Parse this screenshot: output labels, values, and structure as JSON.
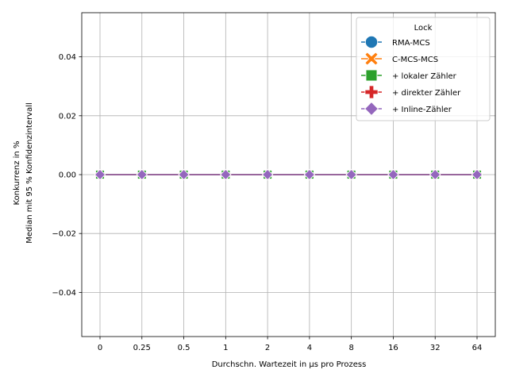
{
  "chart_data": {
    "type": "line",
    "x": [
      "0",
      "0.25",
      "0.5",
      "1",
      "2",
      "4",
      "8",
      "16",
      "32",
      "64"
    ],
    "xlabel": "Durchschn. Wartezeit in µs pro Prozess",
    "ylabel": [
      "Konkurrenz in %",
      "Median mit 95 % Konfidenzintervall"
    ],
    "ylim": [
      -0.055,
      0.055
    ],
    "yticks": [
      -0.04,
      -0.02,
      0.0,
      0.02,
      0.04
    ],
    "ytick_labels": [
      "−0.04",
      "−0.02",
      "0.00",
      "0.02",
      "0.04"
    ],
    "grid": true,
    "legend": {
      "title": "Lock",
      "placement": "top-right"
    },
    "series": [
      {
        "name": "RMA-MCS",
        "color": "#1f77b4",
        "marker": "circle",
        "values": [
          0,
          0,
          0,
          0,
          0,
          0,
          0,
          0,
          0,
          0
        ]
      },
      {
        "name": "C-MCS-MCS",
        "color": "#ff7f0e",
        "marker": "x",
        "values": [
          0,
          0,
          0,
          0,
          0,
          0,
          0,
          0,
          0,
          0
        ]
      },
      {
        "name": "+ lokaler Zähler",
        "color": "#2ca02c",
        "marker": "square",
        "values": [
          0,
          0,
          0,
          0,
          0,
          0,
          0,
          0,
          0,
          0
        ]
      },
      {
        "name": "+ direkter Zähler",
        "color": "#d62728",
        "marker": "plus",
        "values": [
          0,
          0,
          0,
          0,
          0,
          0,
          0,
          0,
          0,
          0
        ]
      },
      {
        "name": "+ Inline-Zähler",
        "color": "#9467bd",
        "marker": "diamond",
        "values": [
          0,
          0,
          0,
          0,
          0,
          0,
          0,
          0,
          0,
          0
        ]
      }
    ]
  }
}
